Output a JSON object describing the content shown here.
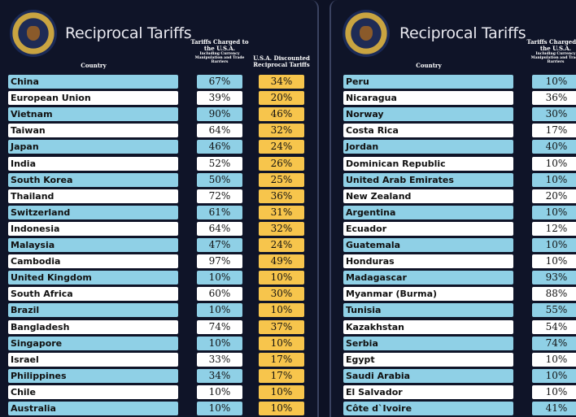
{
  "title": "Reciprocal Tariffs",
  "headers": {
    "country": "Country",
    "charged": "Tariffs Charged to the U.S.A.",
    "charged_sub": "Including Currency Manipulation and Trade Barriers",
    "discounted": "U.S.A. Discounted Reciprocal Tariffs"
  },
  "colors": {
    "blue_row": "#8fd0e6",
    "white_row": "#ffffff",
    "discount": "#f7c54c",
    "background": "#0f1428"
  },
  "left_rows": [
    [
      "China",
      "67%",
      "34%"
    ],
    [
      "European Union",
      "39%",
      "20%"
    ],
    [
      "Vietnam",
      "90%",
      "46%"
    ],
    [
      "Taiwan",
      "64%",
      "32%"
    ],
    [
      "Japan",
      "46%",
      "24%"
    ],
    [
      "India",
      "52%",
      "26%"
    ],
    [
      "South Korea",
      "50%",
      "25%"
    ],
    [
      "Thailand",
      "72%",
      "36%"
    ],
    [
      "Switzerland",
      "61%",
      "31%"
    ],
    [
      "Indonesia",
      "64%",
      "32%"
    ],
    [
      "Malaysia",
      "47%",
      "24%"
    ],
    [
      "Cambodia",
      "97%",
      "49%"
    ],
    [
      "United Kingdom",
      "10%",
      "10%"
    ],
    [
      "South Africa",
      "60%",
      "30%"
    ],
    [
      "Brazil",
      "10%",
      "10%"
    ],
    [
      "Bangladesh",
      "74%",
      "37%"
    ],
    [
      "Singapore",
      "10%",
      "10%"
    ],
    [
      "Israel",
      "33%",
      "17%"
    ],
    [
      "Philippines",
      "34%",
      "17%"
    ],
    [
      "Chile",
      "10%",
      "10%"
    ],
    [
      "Australia",
      "10%",
      "10%"
    ]
  ],
  "right_rows": [
    [
      "Peru",
      "10%"
    ],
    [
      "Nicaragua",
      "36%"
    ],
    [
      "Norway",
      "30%"
    ],
    [
      "Costa Rica",
      "17%"
    ],
    [
      "Jordan",
      "40%"
    ],
    [
      "Dominican Republic",
      "10%"
    ],
    [
      "United Arab Emirates",
      "10%"
    ],
    [
      "New Zealand",
      "20%"
    ],
    [
      "Argentina",
      "10%"
    ],
    [
      "Ecuador",
      "12%"
    ],
    [
      "Guatemala",
      "10%"
    ],
    [
      "Honduras",
      "10%"
    ],
    [
      "Madagascar",
      "93%"
    ],
    [
      "Myanmar (Burma)",
      "88%"
    ],
    [
      "Tunisia",
      "55%"
    ],
    [
      "Kazakhstan",
      "54%"
    ],
    [
      "Serbia",
      "74%"
    ],
    [
      "Egypt",
      "10%"
    ],
    [
      "Saudi Arabia",
      "10%"
    ],
    [
      "El Salvador",
      "10%"
    ],
    [
      "Côte d`Ivoire",
      "41%"
    ]
  ]
}
